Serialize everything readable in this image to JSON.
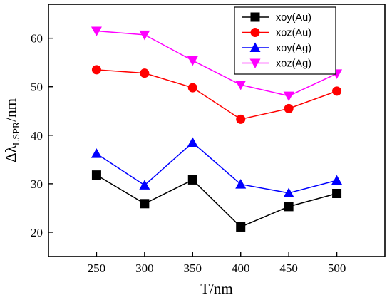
{
  "chart_data": {
    "type": "line",
    "xlabel": "T/nm",
    "ylabel": {
      "prefix": "Δλ",
      "subscript": "LSPR",
      "suffix": "/nm"
    },
    "x": [
      250,
      300,
      350,
      400,
      450,
      500
    ],
    "xlim": [
      200,
      550
    ],
    "ylim": [
      15,
      67
    ],
    "xticks": [
      "250",
      "300",
      "350",
      "400",
      "450",
      "500"
    ],
    "yticks": [
      "20",
      "30",
      "40",
      "50",
      "60"
    ],
    "ytick_values": [
      20,
      30,
      40,
      50,
      60
    ],
    "grid": false,
    "legend_position": "top-right",
    "series": [
      {
        "name": "xoy(Au)",
        "color": "#000000",
        "marker": "square",
        "values": [
          31.8,
          25.9,
          30.8,
          21.1,
          25.3,
          28.0
        ]
      },
      {
        "name": "xoz(Au)",
        "color": "#ff0000",
        "marker": "circle",
        "values": [
          53.5,
          52.8,
          49.8,
          43.3,
          45.5,
          49.1
        ]
      },
      {
        "name": "xoy(Ag)",
        "color": "#0000ff",
        "marker": "triangle-up",
        "values": [
          36.2,
          29.7,
          38.5,
          29.9,
          28.1,
          30.7
        ]
      },
      {
        "name": "xoz(Ag)",
        "color": "#ff00ff",
        "marker": "triangle-down",
        "values": [
          61.5,
          60.7,
          55.4,
          50.4,
          48.1,
          52.7
        ]
      }
    ]
  }
}
